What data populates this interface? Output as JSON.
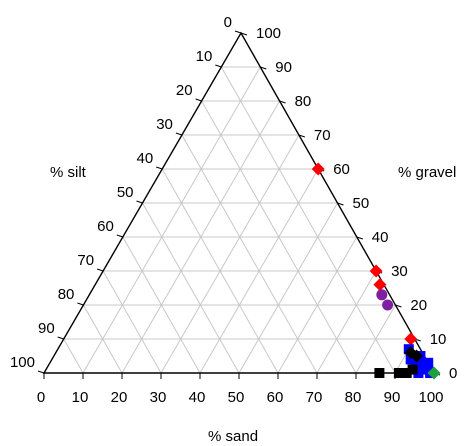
{
  "chart_data": {
    "type": "scatter",
    "subtype": "ternary",
    "axes": {
      "sand": {
        "label": "% sand",
        "ticks": [
          "0",
          "10",
          "20",
          "30",
          "40",
          "50",
          "60",
          "70",
          "80",
          "90",
          "100"
        ]
      },
      "silt": {
        "label": "% silt",
        "ticks": [
          "0",
          "10",
          "20",
          "30",
          "40",
          "50",
          "60",
          "70",
          "80",
          "90",
          "100"
        ]
      },
      "gravel": {
        "label": "% gravel",
        "ticks": [
          "0",
          "10",
          "20",
          "30",
          "40",
          "50",
          "60",
          "70",
          "80",
          "90",
          "100"
        ]
      }
    },
    "grid": true,
    "grid_step": 10,
    "colors": {
      "grid": "#c8c8c8",
      "axis": "#000000",
      "red": "#ff0000",
      "purple": "#7f1f9f",
      "blue": "#0000ff",
      "black": "#000000",
      "green": "#1f9f3f"
    },
    "series": [
      {
        "color_key": "red",
        "marker": "diamond",
        "points": [
          {
            "sand": 40,
            "gravel": 60,
            "silt": 0
          },
          {
            "sand": 70,
            "gravel": 30,
            "silt": 0
          },
          {
            "sand": 73,
            "gravel": 26,
            "silt": 1
          },
          {
            "sand": 89,
            "gravel": 10,
            "silt": 1
          }
        ]
      },
      {
        "color_key": "purple",
        "marker": "circle",
        "points": [
          {
            "sand": 75,
            "gravel": 23,
            "silt": 2
          },
          {
            "sand": 78,
            "gravel": 20,
            "silt": 2
          }
        ]
      },
      {
        "color_key": "blue",
        "marker": "square",
        "points": [
          {
            "sand": 90,
            "gravel": 7,
            "silt": 3
          },
          {
            "sand": 92,
            "gravel": 4,
            "silt": 4
          },
          {
            "sand": 94,
            "gravel": 5,
            "silt": 1
          },
          {
            "sand": 95,
            "gravel": 3,
            "silt": 2
          },
          {
            "sand": 96,
            "gravel": 2,
            "silt": 2
          },
          {
            "sand": 97,
            "gravel": 2,
            "silt": 1
          },
          {
            "sand": 98,
            "gravel": 1,
            "silt": 1
          },
          {
            "sand": 99,
            "gravel": 0,
            "silt": 1
          },
          {
            "sand": 96,
            "gravel": 0,
            "silt": 4
          },
          {
            "sand": 94,
            "gravel": 2,
            "silt": 4
          },
          {
            "sand": 97,
            "gravel": 3,
            "silt": 0
          }
        ]
      },
      {
        "color_key": "black",
        "marker": "square",
        "points": [
          {
            "sand": 86,
            "gravel": 0,
            "silt": 14
          },
          {
            "sand": 91,
            "gravel": 0,
            "silt": 9
          },
          {
            "sand": 93,
            "gravel": 0,
            "silt": 7
          },
          {
            "sand": 94,
            "gravel": 1,
            "silt": 5
          }
        ]
      },
      {
        "color_key": "black",
        "marker": "diamond",
        "points": [
          {
            "sand": 91,
            "gravel": 6,
            "silt": 3
          },
          {
            "sand": 93,
            "gravel": 5,
            "silt": 2
          }
        ]
      },
      {
        "color_key": "green",
        "marker": "diamond",
        "points": [
          {
            "sand": 100,
            "gravel": 0,
            "silt": 0
          }
        ]
      }
    ]
  }
}
